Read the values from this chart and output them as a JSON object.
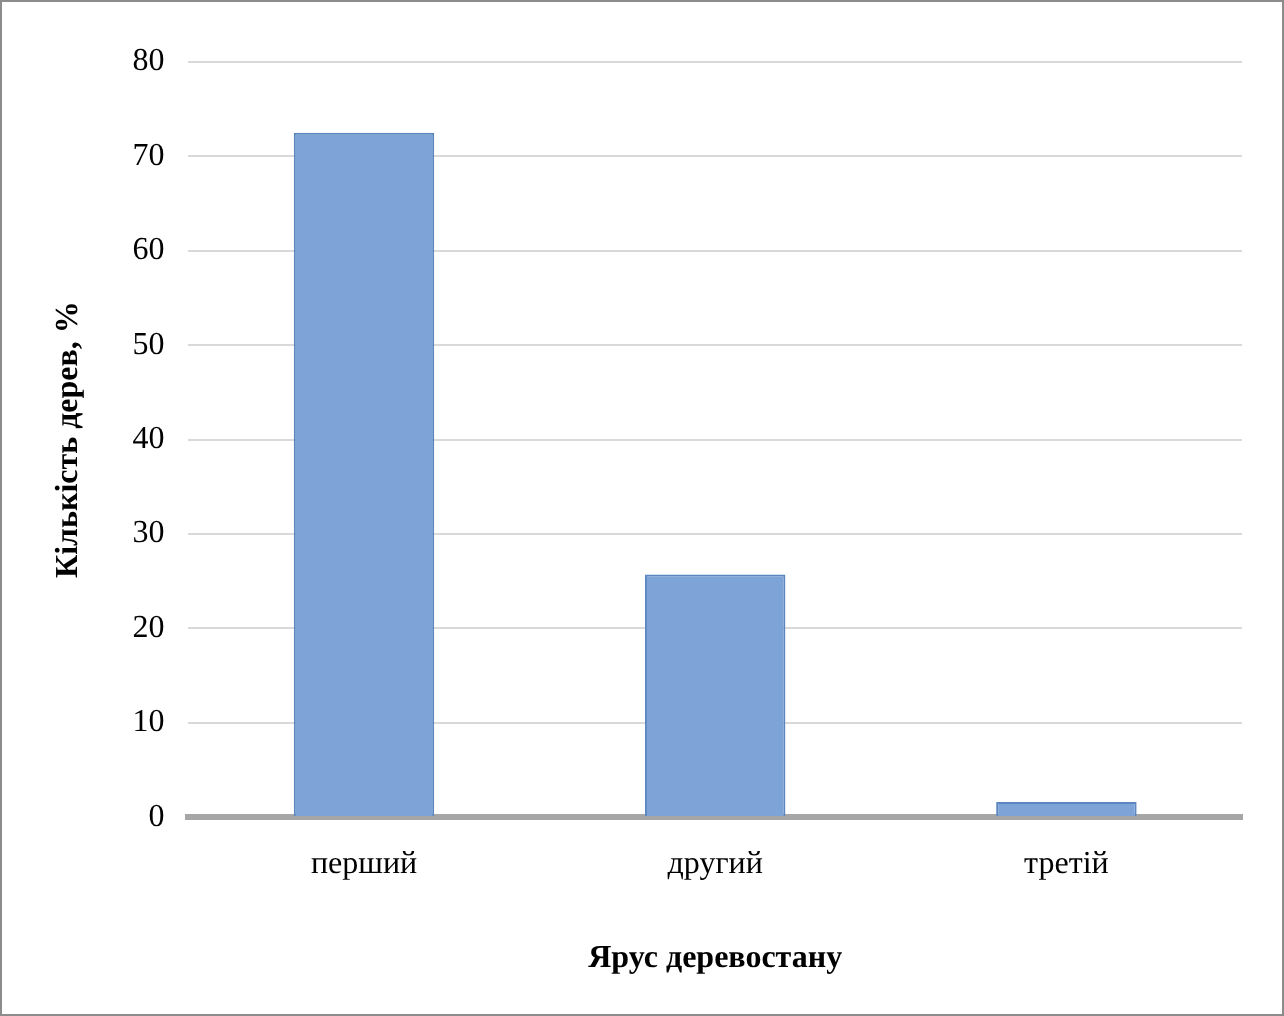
{
  "chart_data": {
    "type": "bar",
    "xlabel": "Ярус деревостану",
    "ylabel": "Кількість дерев, %",
    "categories": [
      "перший",
      "другий",
      "третій"
    ],
    "values": [
      72.5,
      25.7,
      1.6
    ],
    "color": "#7ea3d6",
    "ylim": [
      0,
      80
    ],
    "yticks": [
      0,
      10,
      20,
      30,
      40,
      50,
      60,
      70,
      80
    ],
    "grid": "y",
    "legend": false
  }
}
